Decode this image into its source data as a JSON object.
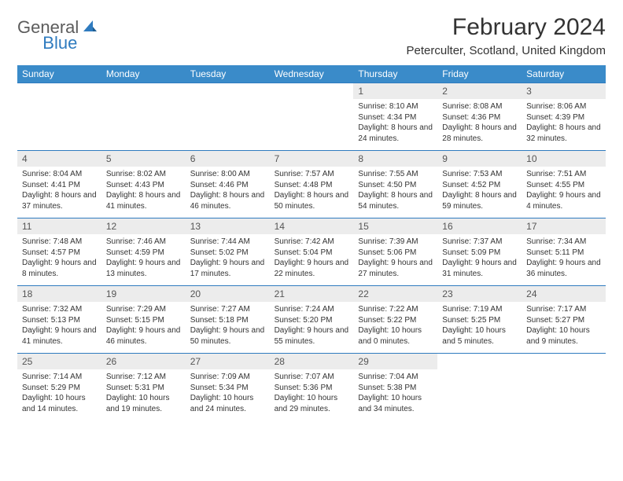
{
  "brand": {
    "general": "General",
    "blue": "Blue"
  },
  "title": "February 2024",
  "location": "Peterculter, Scotland, United Kingdom",
  "colors": {
    "header_bg": "#3a8bc9",
    "header_text": "#ffffff",
    "border": "#2f7bbf",
    "daynum_bg": "#ececec",
    "text": "#333333"
  },
  "weekdays": [
    "Sunday",
    "Monday",
    "Tuesday",
    "Wednesday",
    "Thursday",
    "Friday",
    "Saturday"
  ],
  "layout": {
    "columns": 7,
    "rows": 5,
    "first_day_column_index": 4
  },
  "days": [
    {
      "n": "1",
      "sunrise": "Sunrise: 8:10 AM",
      "sunset": "Sunset: 4:34 PM",
      "daylight": "Daylight: 8 hours and 24 minutes."
    },
    {
      "n": "2",
      "sunrise": "Sunrise: 8:08 AM",
      "sunset": "Sunset: 4:36 PM",
      "daylight": "Daylight: 8 hours and 28 minutes."
    },
    {
      "n": "3",
      "sunrise": "Sunrise: 8:06 AM",
      "sunset": "Sunset: 4:39 PM",
      "daylight": "Daylight: 8 hours and 32 minutes."
    },
    {
      "n": "4",
      "sunrise": "Sunrise: 8:04 AM",
      "sunset": "Sunset: 4:41 PM",
      "daylight": "Daylight: 8 hours and 37 minutes."
    },
    {
      "n": "5",
      "sunrise": "Sunrise: 8:02 AM",
      "sunset": "Sunset: 4:43 PM",
      "daylight": "Daylight: 8 hours and 41 minutes."
    },
    {
      "n": "6",
      "sunrise": "Sunrise: 8:00 AM",
      "sunset": "Sunset: 4:46 PM",
      "daylight": "Daylight: 8 hours and 46 minutes."
    },
    {
      "n": "7",
      "sunrise": "Sunrise: 7:57 AM",
      "sunset": "Sunset: 4:48 PM",
      "daylight": "Daylight: 8 hours and 50 minutes."
    },
    {
      "n": "8",
      "sunrise": "Sunrise: 7:55 AM",
      "sunset": "Sunset: 4:50 PM",
      "daylight": "Daylight: 8 hours and 54 minutes."
    },
    {
      "n": "9",
      "sunrise": "Sunrise: 7:53 AM",
      "sunset": "Sunset: 4:52 PM",
      "daylight": "Daylight: 8 hours and 59 minutes."
    },
    {
      "n": "10",
      "sunrise": "Sunrise: 7:51 AM",
      "sunset": "Sunset: 4:55 PM",
      "daylight": "Daylight: 9 hours and 4 minutes."
    },
    {
      "n": "11",
      "sunrise": "Sunrise: 7:48 AM",
      "sunset": "Sunset: 4:57 PM",
      "daylight": "Daylight: 9 hours and 8 minutes."
    },
    {
      "n": "12",
      "sunrise": "Sunrise: 7:46 AM",
      "sunset": "Sunset: 4:59 PM",
      "daylight": "Daylight: 9 hours and 13 minutes."
    },
    {
      "n": "13",
      "sunrise": "Sunrise: 7:44 AM",
      "sunset": "Sunset: 5:02 PM",
      "daylight": "Daylight: 9 hours and 17 minutes."
    },
    {
      "n": "14",
      "sunrise": "Sunrise: 7:42 AM",
      "sunset": "Sunset: 5:04 PM",
      "daylight": "Daylight: 9 hours and 22 minutes."
    },
    {
      "n": "15",
      "sunrise": "Sunrise: 7:39 AM",
      "sunset": "Sunset: 5:06 PM",
      "daylight": "Daylight: 9 hours and 27 minutes."
    },
    {
      "n": "16",
      "sunrise": "Sunrise: 7:37 AM",
      "sunset": "Sunset: 5:09 PM",
      "daylight": "Daylight: 9 hours and 31 minutes."
    },
    {
      "n": "17",
      "sunrise": "Sunrise: 7:34 AM",
      "sunset": "Sunset: 5:11 PM",
      "daylight": "Daylight: 9 hours and 36 minutes."
    },
    {
      "n": "18",
      "sunrise": "Sunrise: 7:32 AM",
      "sunset": "Sunset: 5:13 PM",
      "daylight": "Daylight: 9 hours and 41 minutes."
    },
    {
      "n": "19",
      "sunrise": "Sunrise: 7:29 AM",
      "sunset": "Sunset: 5:15 PM",
      "daylight": "Daylight: 9 hours and 46 minutes."
    },
    {
      "n": "20",
      "sunrise": "Sunrise: 7:27 AM",
      "sunset": "Sunset: 5:18 PM",
      "daylight": "Daylight: 9 hours and 50 minutes."
    },
    {
      "n": "21",
      "sunrise": "Sunrise: 7:24 AM",
      "sunset": "Sunset: 5:20 PM",
      "daylight": "Daylight: 9 hours and 55 minutes."
    },
    {
      "n": "22",
      "sunrise": "Sunrise: 7:22 AM",
      "sunset": "Sunset: 5:22 PM",
      "daylight": "Daylight: 10 hours and 0 minutes."
    },
    {
      "n": "23",
      "sunrise": "Sunrise: 7:19 AM",
      "sunset": "Sunset: 5:25 PM",
      "daylight": "Daylight: 10 hours and 5 minutes."
    },
    {
      "n": "24",
      "sunrise": "Sunrise: 7:17 AM",
      "sunset": "Sunset: 5:27 PM",
      "daylight": "Daylight: 10 hours and 9 minutes."
    },
    {
      "n": "25",
      "sunrise": "Sunrise: 7:14 AM",
      "sunset": "Sunset: 5:29 PM",
      "daylight": "Daylight: 10 hours and 14 minutes."
    },
    {
      "n": "26",
      "sunrise": "Sunrise: 7:12 AM",
      "sunset": "Sunset: 5:31 PM",
      "daylight": "Daylight: 10 hours and 19 minutes."
    },
    {
      "n": "27",
      "sunrise": "Sunrise: 7:09 AM",
      "sunset": "Sunset: 5:34 PM",
      "daylight": "Daylight: 10 hours and 24 minutes."
    },
    {
      "n": "28",
      "sunrise": "Sunrise: 7:07 AM",
      "sunset": "Sunset: 5:36 PM",
      "daylight": "Daylight: 10 hours and 29 minutes."
    },
    {
      "n": "29",
      "sunrise": "Sunrise: 7:04 AM",
      "sunset": "Sunset: 5:38 PM",
      "daylight": "Daylight: 10 hours and 34 minutes."
    }
  ]
}
